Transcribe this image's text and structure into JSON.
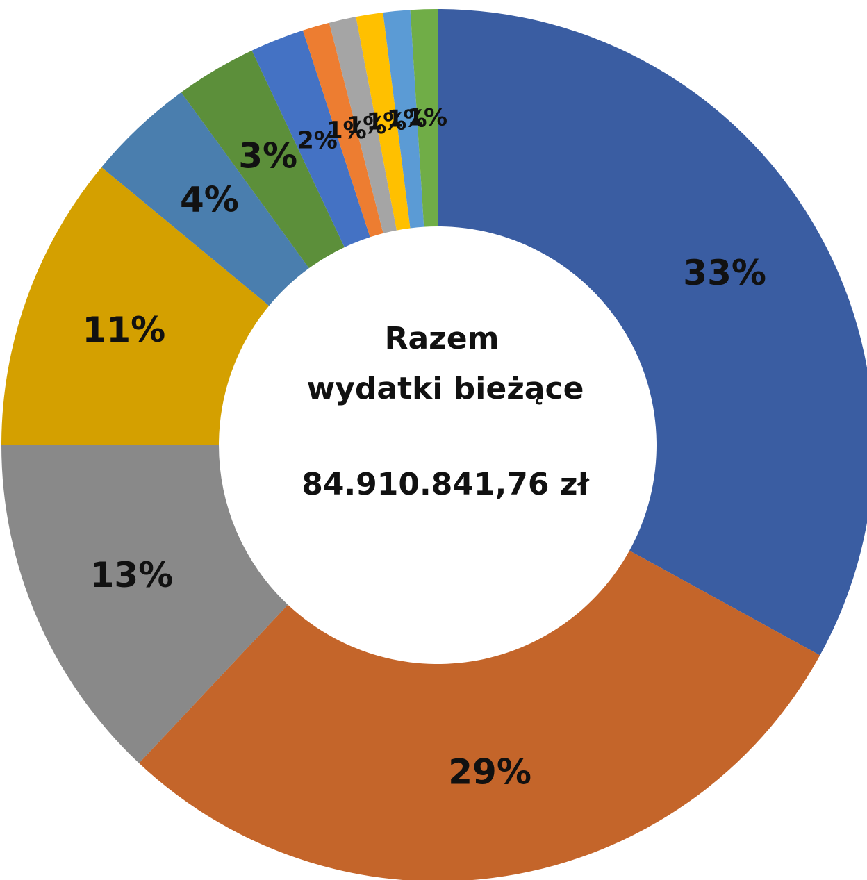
{
  "chart_data": {
    "type": "donut",
    "center_text": [
      "Razem",
      "wydatki bieżące",
      "84.910.841,76 zł"
    ],
    "values": [
      33,
      29,
      13,
      11,
      4,
      3,
      2,
      1,
      1,
      1,
      1,
      1
    ],
    "value_labels": [
      "33%",
      "29%",
      "13%",
      "11%",
      "4%",
      "3%",
      "2%",
      "1%",
      "1%",
      "1%",
      "1%",
      "1%"
    ],
    "colors": [
      "#3a5da2",
      "#c4652a",
      "#898989",
      "#d4a000",
      "#4a7eae",
      "#5c8f3a",
      "#4472c4",
      "#ed7d31",
      "#a5a5a5",
      "#ffc000",
      "#5b9bd5",
      "#70ad47"
    ]
  }
}
